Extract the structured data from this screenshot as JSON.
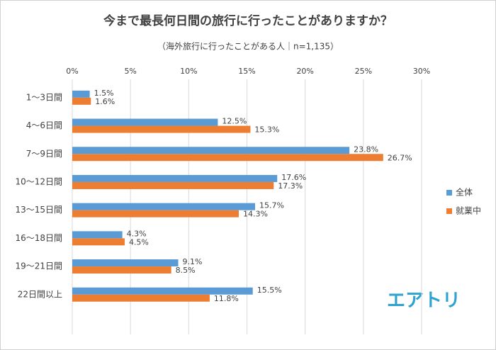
{
  "chart_data": {
    "type": "hbar",
    "title": "今まで最長何日間の旅行に行ったことがありますか？",
    "subtitle": "（海外旅行に行ったことがある人｜n=1,135）",
    "categories": [
      "1～3日間",
      "4～6日間",
      "7～9日間",
      "10～12日間",
      "13～15日間",
      "16～18日間",
      "19～21日間",
      "22日間以上"
    ],
    "series": [
      {
        "name": "全体",
        "color": "#5b9bd5",
        "values": [
          1.5,
          12.5,
          23.8,
          17.6,
          15.7,
          4.3,
          9.1,
          15.5
        ],
        "value_labels": [
          "1.5%",
          "12.5%",
          "23.8%",
          "17.6%",
          "15.7%",
          "4.3%",
          "9.1%",
          "15.5%"
        ]
      },
      {
        "name": "就業中",
        "color": "#ed7d31",
        "values": [
          1.6,
          15.3,
          26.7,
          17.3,
          14.3,
          4.5,
          8.5,
          11.8
        ],
        "value_labels": [
          "1.6%",
          "15.3%",
          "26.7%",
          "17.3%",
          "14.3%",
          "4.5%",
          "8.5%",
          "11.8%"
        ]
      }
    ],
    "xlim": [
      0,
      30
    ],
    "xticks": [
      {
        "value": 0,
        "label": "0%"
      },
      {
        "value": 5,
        "label": "5%"
      },
      {
        "value": 10,
        "label": "10%"
      },
      {
        "value": 15,
        "label": "15%"
      },
      {
        "value": 20,
        "label": "20%"
      },
      {
        "value": 25,
        "label": "25%"
      },
      {
        "value": 30,
        "label": "30%"
      }
    ],
    "grid": true,
    "legend": "right",
    "logo": "エアトリ"
  }
}
